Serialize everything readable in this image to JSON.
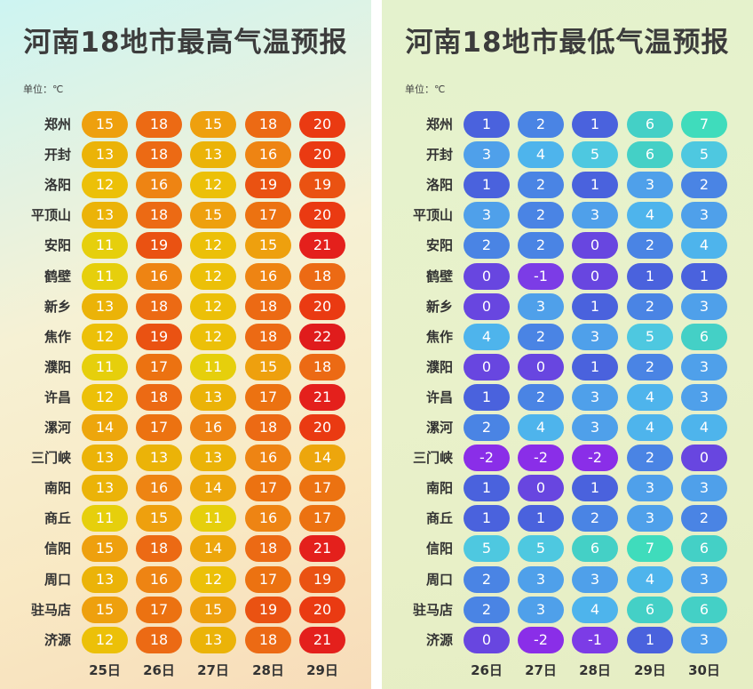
{
  "chart_data": [
    {
      "type": "table",
      "title": "河南18地市最高气温预报",
      "unit_label": "单位：℃",
      "days": [
        "25日",
        "26日",
        "27日",
        "28日",
        "29日"
      ],
      "cities": [
        "郑州",
        "开封",
        "洛阳",
        "平顶山",
        "安阳",
        "鹤壁",
        "新乡",
        "焦作",
        "濮阳",
        "许昌",
        "漯河",
        "三门峡",
        "南阳",
        "商丘",
        "信阳",
        "周口",
        "驻马店",
        "济源"
      ],
      "values": [
        [
          15,
          18,
          15,
          18,
          20
        ],
        [
          13,
          18,
          13,
          16,
          20
        ],
        [
          12,
          16,
          12,
          19,
          19
        ],
        [
          13,
          18,
          15,
          17,
          20
        ],
        [
          11,
          19,
          12,
          15,
          21
        ],
        [
          11,
          16,
          12,
          16,
          18
        ],
        [
          13,
          18,
          12,
          18,
          20
        ],
        [
          12,
          19,
          12,
          18,
          22
        ],
        [
          11,
          17,
          11,
          15,
          18
        ],
        [
          12,
          18,
          13,
          17,
          21
        ],
        [
          14,
          17,
          16,
          18,
          20
        ],
        [
          13,
          13,
          13,
          16,
          14
        ],
        [
          13,
          16,
          14,
          17,
          17
        ],
        [
          11,
          15,
          11,
          16,
          17
        ],
        [
          15,
          18,
          14,
          18,
          21
        ],
        [
          13,
          16,
          12,
          17,
          19
        ],
        [
          15,
          17,
          15,
          19,
          20
        ],
        [
          12,
          18,
          13,
          18,
          21
        ]
      ],
      "color_scale": {
        "11": "#e6cf0c",
        "12": "#ecc008",
        "13": "#ebb308",
        "14": "#eda60c",
        "15": "#eea00e",
        "16": "#ee8413",
        "17": "#ec7211",
        "18": "#ec6a14",
        "19": "#ea5212",
        "20": "#ea3a12",
        "21": "#e4201c",
        "22": "#e01c1c"
      }
    },
    {
      "type": "table",
      "title": "河南18地市最低气温预报",
      "unit_label": "单位：℃",
      "days": [
        "26日",
        "27日",
        "28日",
        "29日",
        "30日"
      ],
      "cities": [
        "郑州",
        "开封",
        "洛阳",
        "平顶山",
        "安阳",
        "鹤壁",
        "新乡",
        "焦作",
        "濮阳",
        "许昌",
        "漯河",
        "三门峡",
        "南阳",
        "商丘",
        "信阳",
        "周口",
        "驻马店",
        "济源"
      ],
      "values": [
        [
          1,
          2,
          1,
          6,
          7
        ],
        [
          3,
          4,
          5,
          6,
          5
        ],
        [
          1,
          2,
          1,
          3,
          2
        ],
        [
          3,
          2,
          3,
          4,
          3
        ],
        [
          2,
          2,
          0,
          2,
          4
        ],
        [
          0,
          -1,
          0,
          1,
          1
        ],
        [
          0,
          3,
          1,
          2,
          3
        ],
        [
          4,
          2,
          3,
          5,
          6
        ],
        [
          0,
          0,
          1,
          2,
          3
        ],
        [
          1,
          2,
          3,
          4,
          3
        ],
        [
          2,
          4,
          3,
          4,
          4
        ],
        [
          -2,
          -2,
          -2,
          2,
          0
        ],
        [
          1,
          0,
          1,
          3,
          3
        ],
        [
          1,
          1,
          2,
          3,
          2
        ],
        [
          5,
          5,
          6,
          7,
          6
        ],
        [
          2,
          3,
          3,
          4,
          3
        ],
        [
          2,
          3,
          4,
          6,
          6
        ],
        [
          0,
          -2,
          -1,
          1,
          3
        ]
      ],
      "color_scale": {
        "-2": "#8a2ee8",
        "-1": "#7c3ce6",
        "0": "#6846e0",
        "1": "#4a62dd",
        "2": "#4a84e4",
        "3": "#4fa0ea",
        "4": "#4eb4ec",
        "5": "#4ec8e0",
        "6": "#44d0c6",
        "7": "#3fdcbc"
      }
    }
  ]
}
